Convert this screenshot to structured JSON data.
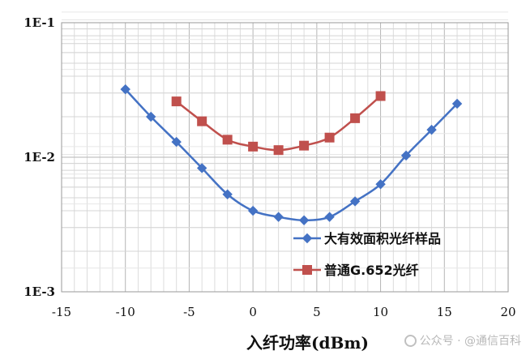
{
  "chart_data": {
    "type": "line",
    "xlabel": "入纤功率(dBm)",
    "ylabel": "",
    "title": "",
    "xlim": [
      -15,
      20
    ],
    "xticks": [
      -15,
      -10,
      -5,
      0,
      5,
      10,
      15,
      20
    ],
    "ylim": [
      0.001,
      0.1
    ],
    "yscale": "log",
    "yticks": [
      0.001,
      0.01,
      0.1
    ],
    "ytick_labels": [
      "1E-3",
      "1E-2",
      "1E-1"
    ],
    "grid": true,
    "legend_position": "bottom-right",
    "series": [
      {
        "name": "大有效面积光纤样品",
        "color": "#4472C4",
        "marker": "diamond",
        "x": [
          -10,
          -8,
          -6,
          -4,
          -2,
          0,
          2,
          4,
          6,
          8,
          10,
          12,
          14,
          16
        ],
        "y": [
          0.032,
          0.02,
          0.013,
          0.0083,
          0.0053,
          0.004,
          0.0036,
          0.0034,
          0.0036,
          0.0047,
          0.0063,
          0.0103,
          0.016,
          0.025
        ]
      },
      {
        "name": "普通G.652光纤",
        "color": "#C0504D",
        "marker": "square",
        "x": [
          -6,
          -4,
          -2,
          0,
          2,
          4,
          6,
          8,
          10
        ],
        "y": [
          0.026,
          0.0185,
          0.0135,
          0.012,
          0.0113,
          0.0122,
          0.014,
          0.0195,
          0.0285
        ]
      }
    ]
  },
  "watermark": "公众号 · @通信百科"
}
